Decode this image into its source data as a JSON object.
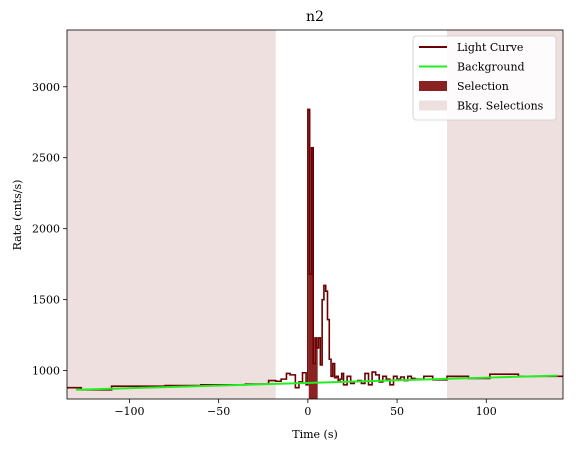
{
  "chart_data": {
    "type": "line",
    "title": "n2",
    "xlabel": "Time (s)",
    "ylabel": "Rate (cnts/s)",
    "xlim": [
      -135,
      143
    ],
    "ylim": [
      800,
      3400
    ],
    "xticks": [
      -100,
      -50,
      0,
      50,
      100
    ],
    "xtick_labels": [
      "−100",
      "−50",
      "0",
      "50",
      "100"
    ],
    "yticks": [
      1000,
      1500,
      2000,
      2500,
      3000
    ],
    "ytick_labels": [
      "1000",
      "1500",
      "2000",
      "2500",
      "3000"
    ],
    "grid": false,
    "legend_position": "top-right",
    "colors": {
      "light_curve": "#6b0000",
      "background": "#22ee22",
      "selection": "#8b2222",
      "bkg_selection": "#efe0e0"
    },
    "legend": [
      {
        "label": "Light Curve",
        "kind": "line",
        "color": "#6b0000"
      },
      {
        "label": "Background",
        "kind": "line",
        "color": "#22ee22"
      },
      {
        "label": "Selection",
        "kind": "patch",
        "color": "#8b2222"
      },
      {
        "label": "Bkg. Selections",
        "kind": "patch",
        "color": "#efe0e0"
      }
    ],
    "bkg_selections": [
      [
        -135,
        -18
      ],
      [
        78,
        143
      ]
    ],
    "selection": [
      0.5,
      5.5
    ],
    "background": {
      "x": [
        -130,
        140
      ],
      "y": [
        865,
        965
      ]
    },
    "light_curve": {
      "edges": [
        -135,
        -127,
        -110,
        -80,
        -60,
        -35,
        -22,
        -18,
        -15,
        -12,
        -10,
        -7,
        -5,
        -3,
        -1,
        0,
        1,
        2,
        3,
        4,
        5,
        6,
        7,
        8,
        9,
        10,
        11,
        12,
        13,
        14,
        15,
        16,
        17,
        18,
        19,
        20,
        22,
        24,
        26,
        28,
        30,
        32,
        34,
        36,
        38,
        40,
        42,
        44,
        46,
        48,
        50,
        52,
        54,
        56,
        58,
        60,
        65,
        70,
        78,
        90,
        102,
        118,
        143
      ],
      "values": [
        880,
        865,
        890,
        895,
        900,
        905,
        930,
        925,
        940,
        980,
        970,
        880,
        920,
        985,
        900,
        2840,
        1680,
        2570,
        1050,
        1230,
        1160,
        1230,
        1040,
        1500,
        1600,
        1560,
        1360,
        1080,
        960,
        1050,
        950,
        960,
        920,
        940,
        980,
        900,
        960,
        910,
        925,
        930,
        910,
        980,
        900,
        990,
        970,
        920,
        960,
        940,
        900,
        960,
        940,
        955,
        930,
        960,
        945,
        940,
        960,
        935,
        960,
        945,
        975,
        960
      ]
    }
  }
}
